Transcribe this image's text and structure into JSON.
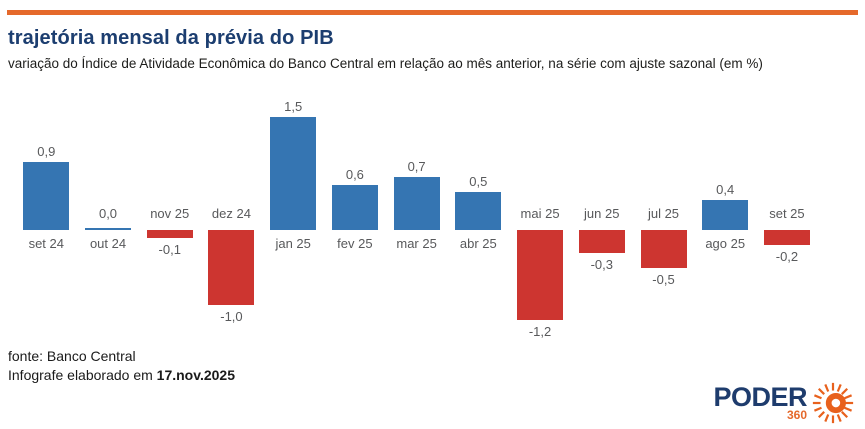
{
  "header": {
    "title": "trajetória mensal da prévia do PIB",
    "subtitle": "variação do Índice de Atividade Econômica do Banco Central em relação ao mês anterior, na série com ajuste sazonal (em %)"
  },
  "accent_bar_color": "#e5692b",
  "chart_data": {
    "type": "bar",
    "title": "trajetória mensal da prévia do PIB",
    "unit": "%",
    "categories": [
      "set 24",
      "out 24",
      "nov 25",
      "dez 24",
      "jan 25",
      "fev 25",
      "mar 25",
      "abr 25",
      "mai 25",
      "jun 25",
      "jul 25",
      "ago 25",
      "set 25"
    ],
    "values": [
      0.9,
      0.0,
      -0.1,
      -1.0,
      1.5,
      0.6,
      0.7,
      0.5,
      -1.2,
      -0.3,
      -0.5,
      0.4,
      -0.2
    ],
    "value_labels": [
      "0,9",
      "0,0",
      "-0,1",
      "-1,0",
      "1,5",
      "0,6",
      "0,7",
      "0,5",
      "-1,2",
      "-0,3",
      "-0,5",
      "0,4",
      "-0,2"
    ],
    "positive_color": "#3575b2",
    "negative_color": "#cd3530",
    "label_color": "#58595b",
    "grid": false,
    "legend": false,
    "ylim": [
      -1.5,
      1.8
    ]
  },
  "footer": {
    "source": "fonte: Banco Central",
    "elaboration_prefix": "Infografe elaborado em ",
    "elaboration_date": "17.nov.2025"
  },
  "logo": {
    "brand": "PODER",
    "suffix": "360",
    "brand_color": "#1e3c6d",
    "accent_color": "#e5692b"
  }
}
